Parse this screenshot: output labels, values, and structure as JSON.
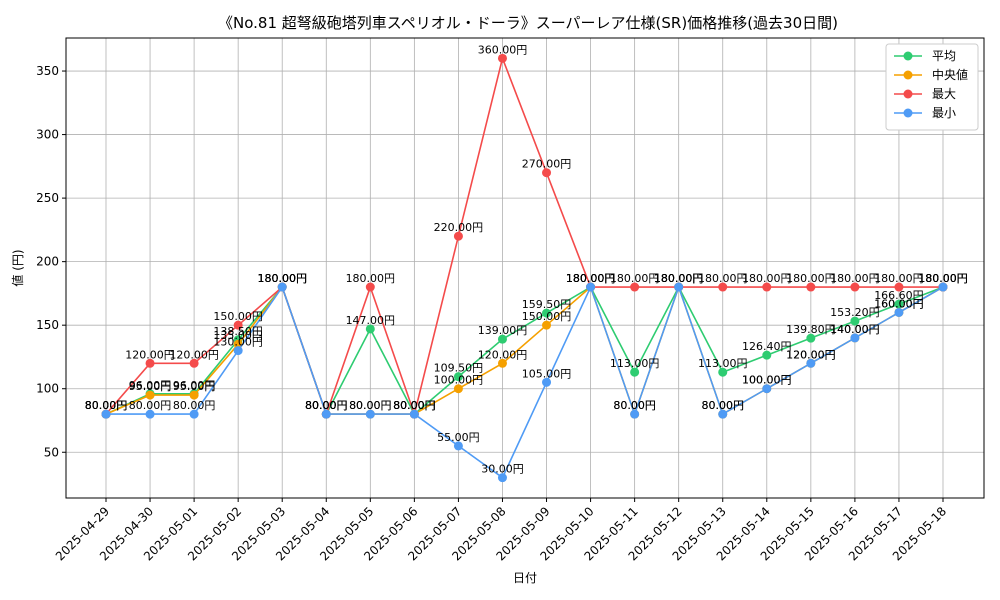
{
  "chart_data": {
    "type": "line",
    "title": "《No.81 超弩級砲塔列車スペリオル・ドーラ》スーパーレア仕様(SR)価格推移(過去30日間)",
    "xlabel": "日付",
    "ylabel": "値 (円)",
    "ylim": [
      14,
      376
    ],
    "yticks": [
      50,
      100,
      150,
      200,
      250,
      300,
      350
    ],
    "grid": true,
    "legend_position": "top-right",
    "label_suffix": "円",
    "categories": [
      "2025-04-29",
      "2025-04-30",
      "2025-05-01",
      "2025-05-02",
      "2025-05-03",
      "2025-05-04",
      "2025-05-05",
      "2025-05-06",
      "2025-05-07",
      "2025-05-08",
      "2025-05-09",
      "2025-05-10",
      "2025-05-11",
      "2025-05-12",
      "2025-05-13",
      "2025-05-14",
      "2025-05-15",
      "2025-05-16",
      "2025-05-17",
      "2025-05-18"
    ],
    "series": [
      {
        "name": "平均",
        "color": "#2ecc71",
        "values": [
          80,
          96,
          96,
          138.5,
          180,
          80,
          147,
          80,
          109.5,
          139,
          159.5,
          180,
          113,
          180,
          113,
          126.4,
          139.8,
          153.2,
          166.6,
          180
        ]
      },
      {
        "name": "中央値",
        "color": "#f5a000",
        "values": [
          80,
          95,
          95,
          135,
          180,
          80,
          80,
          80,
          100,
          120,
          150,
          180,
          80,
          180,
          80,
          100,
          120,
          140,
          160,
          180
        ]
      },
      {
        "name": "最大",
        "color": "#f44b4b",
        "values": [
          80,
          120,
          120,
          150,
          180,
          80,
          180,
          80,
          220,
          360,
          270,
          180,
          180,
          180,
          180,
          180,
          180,
          180,
          180,
          180
        ]
      },
      {
        "name": "最小",
        "color": "#4f9bf5",
        "values": [
          80,
          80,
          80,
          130,
          180,
          80,
          80,
          80,
          55,
          30,
          105,
          180,
          80,
          180,
          80,
          100,
          120,
          140,
          160,
          180
        ]
      }
    ]
  }
}
